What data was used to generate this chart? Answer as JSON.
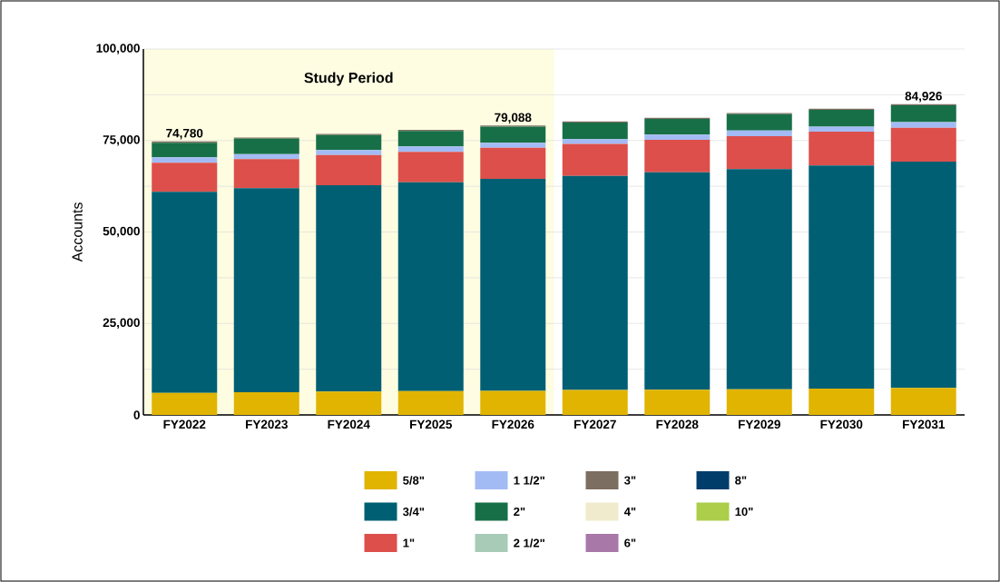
{
  "chart_data": {
    "type": "bar",
    "stacked": true,
    "ylabel": "Accounts",
    "categories": [
      "FY2022",
      "FY2023",
      "FY2024",
      "FY2025",
      "FY2026",
      "FY2027",
      "FY2028",
      "FY2029",
      "FY2030",
      "FY2031"
    ],
    "series": [
      {
        "name": "5/8\"",
        "color": "#e0b400",
        "values": [
          6000,
          6200,
          6400,
          6500,
          6600,
          6800,
          6900,
          7000,
          7200,
          7400
        ]
      },
      {
        "name": "3/4\"",
        "color": "#005f73",
        "values": [
          55000,
          55800,
          56400,
          57100,
          57900,
          58500,
          59400,
          60200,
          61000,
          61800
        ]
      },
      {
        "name": "1\"",
        "color": "#dc4f4b",
        "values": [
          7900,
          7900,
          8200,
          8300,
          8500,
          8800,
          8900,
          9000,
          9200,
          9300
        ]
      },
      {
        "name": "1 1/2\"",
        "color": "#a3bbf5",
        "values": [
          1500,
          1400,
          1400,
          1500,
          1400,
          1300,
          1400,
          1500,
          1400,
          1500
        ]
      },
      {
        "name": "2\"",
        "color": "#176f47",
        "values": [
          4000,
          4200,
          4100,
          4200,
          4400,
          4500,
          4300,
          4500,
          4600,
          4600
        ]
      },
      {
        "name": "2 1/2\"",
        "color": "#a8cbb8",
        "values": [
          null,
          null,
          null,
          null,
          null,
          null,
          null,
          null,
          null,
          null
        ]
      },
      {
        "name": "3\"",
        "color": "#7d6e62",
        "values": [
          380,
          300,
          300,
          300,
          288,
          300,
          300,
          300,
          300,
          326
        ]
      },
      {
        "name": "4\"",
        "color": "#efebcc",
        "values": [
          null,
          null,
          null,
          null,
          null,
          null,
          null,
          null,
          null,
          null
        ]
      },
      {
        "name": "6\"",
        "color": "#a878a8",
        "values": [
          null,
          null,
          null,
          null,
          null,
          null,
          null,
          null,
          null,
          null
        ]
      },
      {
        "name": "8\"",
        "color": "#003d6b",
        "values": [
          null,
          null,
          null,
          null,
          null,
          null,
          null,
          null,
          null,
          null
        ]
      },
      {
        "name": "10\"",
        "color": "#acce4b",
        "values": [
          null,
          null,
          null,
          null,
          null,
          null,
          null,
          null,
          null,
          null
        ]
      }
    ],
    "totals": [
      "74,780",
      null,
      null,
      null,
      "79,088",
      null,
      null,
      null,
      null,
      "84,926"
    ],
    "ylim": [
      0,
      100000
    ],
    "yticks": [
      {
        "value": 0,
        "label": "0"
      },
      {
        "value": 12500,
        "label": null
      },
      {
        "value": 25000,
        "label": "25,000"
      },
      {
        "value": 37500,
        "label": null
      },
      {
        "value": 50000,
        "label": "50,000"
      },
      {
        "value": 62500,
        "label": null
      },
      {
        "value": 75000,
        "label": "75,000"
      },
      {
        "value": 87500,
        "label": null
      },
      {
        "value": 100000,
        "label": "100,000"
      }
    ],
    "grid": "y",
    "legend": "bottom",
    "bands": [
      {
        "axis": "x",
        "from": "FY2022",
        "to": "FY2026",
        "label": "Study Period",
        "color": "#fefde2"
      }
    ]
  }
}
